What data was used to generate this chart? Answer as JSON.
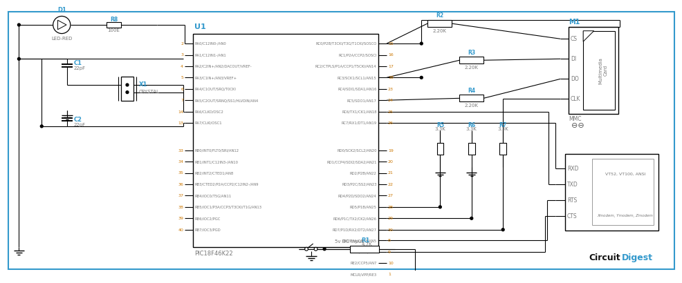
{
  "bg_color": "#ffffff",
  "border_color": "#3399cc",
  "line_color": "#000000",
  "label_color": "#3399cc",
  "pin_label_color": "#777777",
  "pin_number_color": "#cc7700",
  "cd_black": "#000000",
  "cd_blue": "#3399cc",
  "ic_label": "U1",
  "ic_sub_label": "PIC18F46K22",
  "ic_left_pins": [
    {
      "num": "2",
      "label": "RA0/C12IN0-/AN0"
    },
    {
      "num": "3",
      "label": "RA1/C12IN1-/AN1"
    },
    {
      "num": "4",
      "label": "RA2/C2IN+/AN2/DACOUT/VREF-"
    },
    {
      "num": "5",
      "label": "RA3/C1IN+/AN3/VREF+"
    },
    {
      "num": "6",
      "label": "RA4/C1OUT/SRQ/T0CKI"
    },
    {
      "num": "7",
      "label": "RA5/C2OUT/SRNQ/SS1/HLVDIN/AN4"
    },
    {
      "num": "14",
      "label": "RA6/CLKO/OSC2"
    },
    {
      "num": "13",
      "label": "RA7/CLKI/OSC1"
    },
    {
      "num": "33",
      "label": "RB0/INT0/FLT0/SRI/AN12"
    },
    {
      "num": "34",
      "label": "RB1/INT1/C12IN3-/AN10"
    },
    {
      "num": "35",
      "label": "RB2/INT2/CTED1/AN8"
    },
    {
      "num": "36",
      "label": "RB3/CTED2/P2A/CCP2/C12IN2-/AN9"
    },
    {
      "num": "37",
      "label": "RB4/IOC0/T5G/AN11"
    },
    {
      "num": "38",
      "label": "RB5/IOC1/P3A/CCP3/T3CKI/T1G/AN13"
    },
    {
      "num": "39",
      "label": "RB6/IOC2/PGC"
    },
    {
      "num": "40",
      "label": "RB7/IOC3/PGD"
    }
  ],
  "ic_right_pins": [
    {
      "num": "15",
      "label": "RC0/P2B/T3CKI/T3G/T1CKI/SOSCO"
    },
    {
      "num": "16",
      "label": "RC1/P2A/CCP2/SOSCI"
    },
    {
      "num": "17",
      "label": "RC2/CTPLS/P1A/CCP1/T5CKI/AN14"
    },
    {
      "num": "18",
      "label": "RC3/SCK1/SCL1/AN15"
    },
    {
      "num": "23",
      "label": "RC4/SDI1/SDA1/AN16"
    },
    {
      "num": "24",
      "label": "RC5/SDO1/AN17"
    },
    {
      "num": "25",
      "label": "RC6/TX1/CK1/AN18"
    },
    {
      "num": "26",
      "label": "RC7/RX1/DT1/AN19"
    },
    {
      "num": "19",
      "label": "RD0/SCK2/SCL2/AN20"
    },
    {
      "num": "20",
      "label": "RD1/CCP4/SDI2/SDA2/AN21"
    },
    {
      "num": "21",
      "label": "RD2/P2B/AN22"
    },
    {
      "num": "22",
      "label": "RD3/P2C/SS2/AN23"
    },
    {
      "num": "27",
      "label": "RD4/P2D/SDO2/AN24"
    },
    {
      "num": "28",
      "label": "RD5/P1B/AN25"
    },
    {
      "num": "29",
      "label": "RD6/P1C/TX2/CK2/AN26"
    },
    {
      "num": "30",
      "label": "RD7/P1D/RX2/DT2/AN27"
    },
    {
      "num": "8",
      "label": "RE0/P3A/CCP3/AN5"
    },
    {
      "num": "9",
      "label": "RE1/P3B/AN6"
    },
    {
      "num": "10",
      "label": "RE2/CCP5/AN7"
    },
    {
      "num": "1",
      "label": "MCLR/VPP/RE3"
    }
  ],
  "mmc_pins": [
    "CS",
    "DI",
    "DO",
    "CLK"
  ],
  "mmc_label": "M1",
  "mmc_sub": "MMC",
  "mmc_card_text1": "Card",
  "mmc_card_text2": "Multimedia",
  "serial_pins": [
    "RXD",
    "TXD",
    "RTS",
    "CTS"
  ],
  "serial_inner_top": "VT52, VT100, ANSI",
  "serial_inner_bot": "Xmodem, Ymodem, Zmodem",
  "resistors": [
    {
      "label": "R2",
      "value": "2.20K"
    },
    {
      "label": "R3",
      "value": "2.20K"
    },
    {
      "label": "R4",
      "value": "2.20K"
    },
    {
      "label": "R5",
      "value": "3.3K"
    },
    {
      "label": "R6",
      "value": "3.3K"
    },
    {
      "label": "R7",
      "value": "3.3K"
    },
    {
      "label": "R8",
      "value": "100E"
    },
    {
      "label": "R1",
      "value": "4.7K"
    }
  ],
  "caps": [
    {
      "label": "C1",
      "value": "22pF"
    },
    {
      "label": "C2",
      "value": "22pF"
    }
  ],
  "led_label": "D1",
  "led_sub": "LED-RED",
  "crystal_label": "X1",
  "crystal_sub": "CRYSTAL",
  "vdc_label": "5v DC Input"
}
